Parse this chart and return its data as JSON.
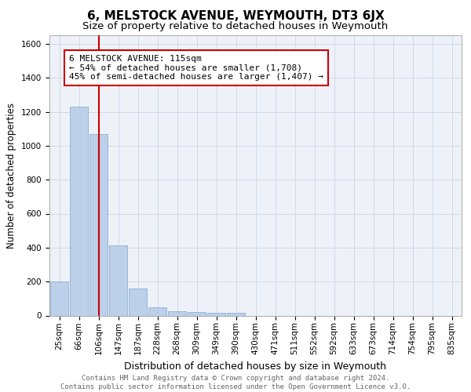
{
  "title": "6, MELSTOCK AVENUE, WEYMOUTH, DT3 6JX",
  "subtitle": "Size of property relative to detached houses in Weymouth",
  "xlabel": "Distribution of detached houses by size in Weymouth",
  "ylabel": "Number of detached properties",
  "categories": [
    "25sqm",
    "66sqm",
    "106sqm",
    "147sqm",
    "187sqm",
    "228sqm",
    "268sqm",
    "309sqm",
    "349sqm",
    "390sqm",
    "430sqm",
    "471sqm",
    "511sqm",
    "552sqm",
    "592sqm",
    "633sqm",
    "673sqm",
    "714sqm",
    "754sqm",
    "795sqm",
    "835sqm"
  ],
  "values": [
    200,
    1230,
    1070,
    415,
    160,
    50,
    25,
    20,
    15,
    15,
    0,
    0,
    0,
    0,
    0,
    0,
    0,
    0,
    0,
    0,
    0
  ],
  "bar_color": "#bdd0e9",
  "bar_edge_color": "#8aafd6",
  "line_x_index": 2,
  "line_color": "#cc0000",
  "annotation_box_text": "6 MELSTOCK AVENUE: 115sqm\n← 54% of detached houses are smaller (1,708)\n45% of semi-detached houses are larger (1,407) →",
  "annotation_box_color": "#cc0000",
  "ylim": [
    0,
    1650
  ],
  "yticks": [
    0,
    200,
    400,
    600,
    800,
    1000,
    1200,
    1400,
    1600
  ],
  "grid_color": "#d0d8e8",
  "background_color": "#eef2f8",
  "footer_text": "Contains HM Land Registry data © Crown copyright and database right 2024.\nContains public sector information licensed under the Open Government Licence v3.0.",
  "title_fontsize": 11,
  "subtitle_fontsize": 9.5,
  "xlabel_fontsize": 9,
  "ylabel_fontsize": 8.5,
  "tick_fontsize": 7.5,
  "annotation_fontsize": 8,
  "footer_fontsize": 6.5
}
